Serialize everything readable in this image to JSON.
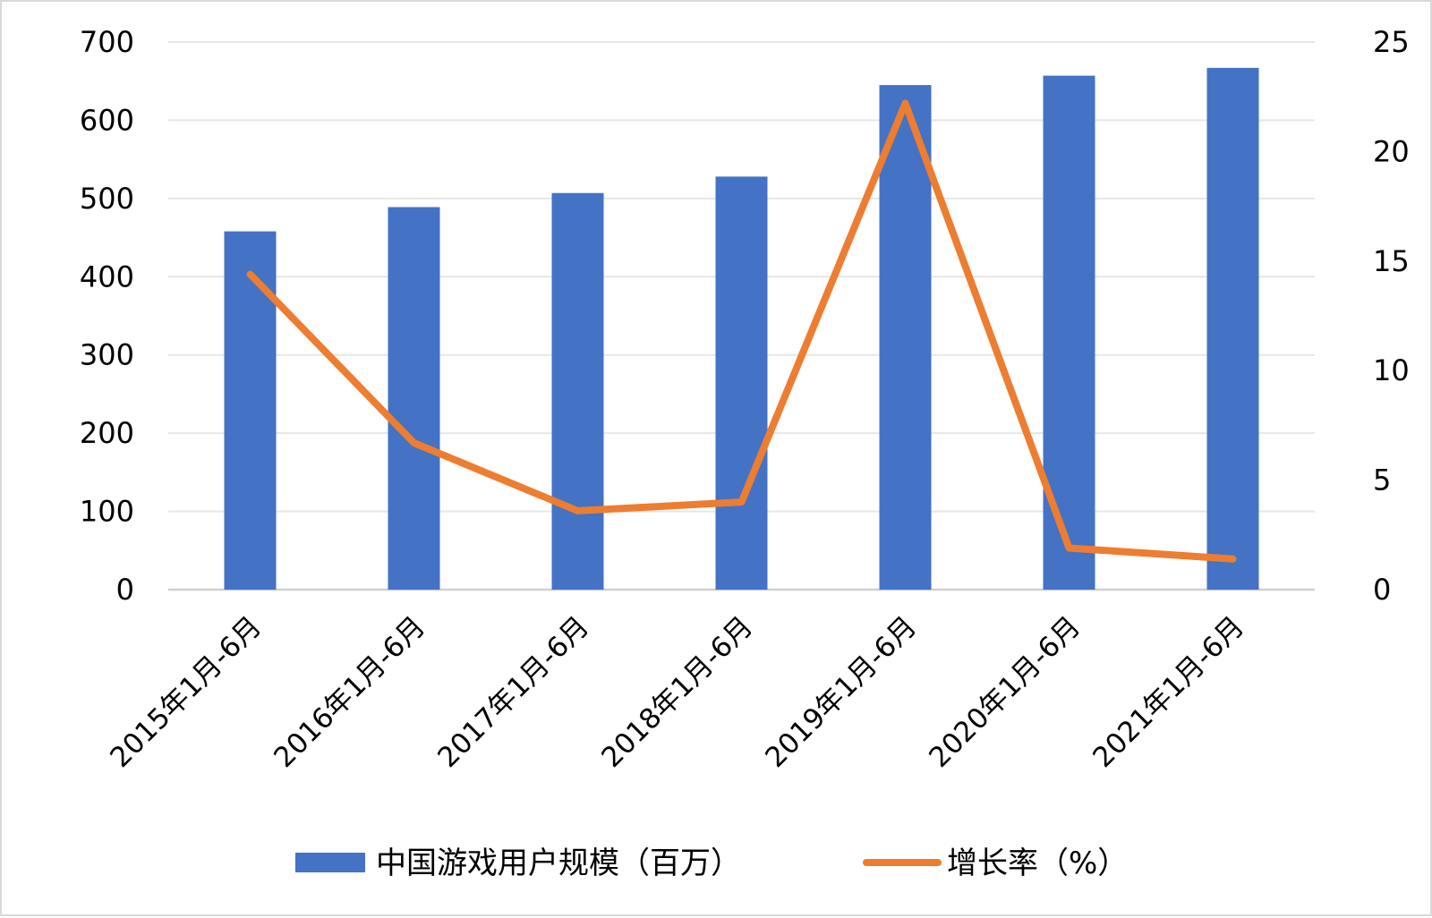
{
  "chart_data": {
    "type": "bar",
    "categories": [
      "2015年1月-6月",
      "2016年1月-6月",
      "2017年1月-6月",
      "2018年1月-6月",
      "2019年1月-6月",
      "2020年1月-6月",
      "2021年1月-6月"
    ],
    "series": [
      {
        "name": "中国游戏用户规模（百万）",
        "type": "bar",
        "axis": "left",
        "color": "#4472C4",
        "values": [
          458,
          489,
          507,
          528,
          645,
          657,
          667
        ]
      },
      {
        "name": "增长率（%）",
        "type": "line",
        "axis": "right",
        "color": "#ED7D31",
        "values": [
          14.4,
          6.7,
          3.6,
          4.0,
          22.2,
          1.9,
          1.4
        ]
      }
    ],
    "y_left": {
      "lim": [
        0,
        700
      ],
      "ticks": [
        "0",
        "100",
        "200",
        "300",
        "400",
        "500",
        "600",
        "700"
      ]
    },
    "y_right": {
      "lim": [
        0,
        25
      ],
      "ticks": [
        "0",
        "5",
        "10",
        "15",
        "20",
        "25"
      ]
    },
    "grid": true,
    "legend_position": "bottom"
  }
}
